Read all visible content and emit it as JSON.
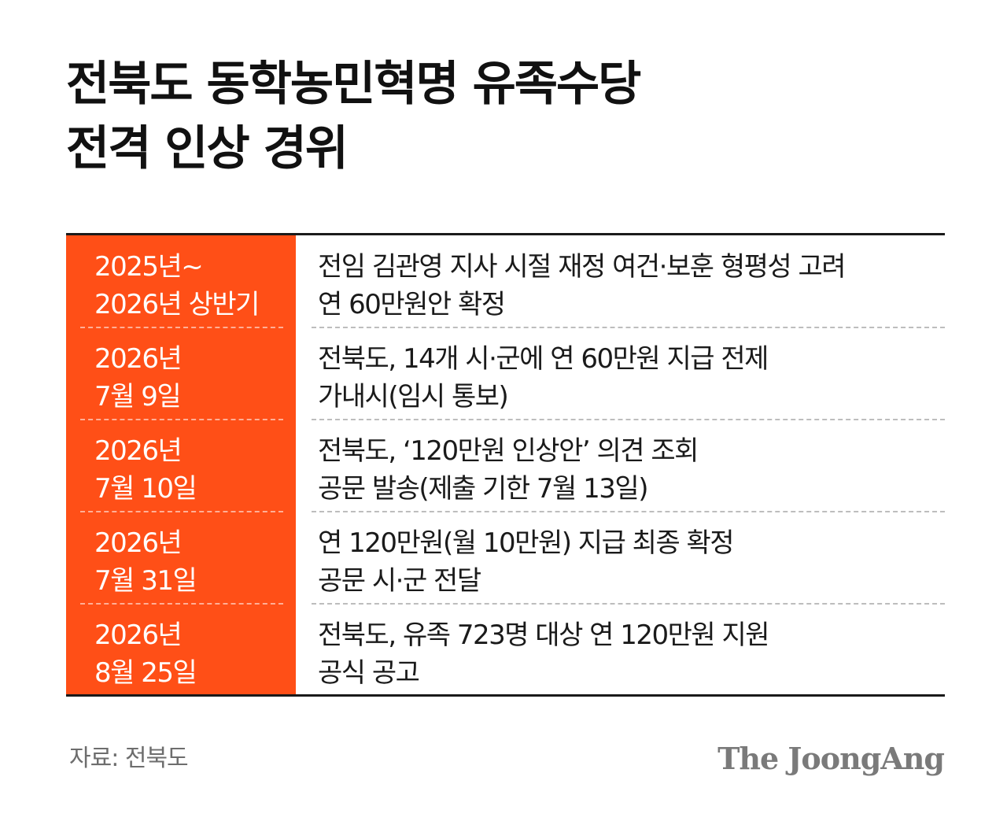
{
  "title": {
    "line1": "전북도 동학농민혁명 유족수당",
    "line2": "전격 인상 경위"
  },
  "rows": [
    {
      "date_line1": "2025년~",
      "date_line2": "2026년 상반기",
      "desc_line1": "전임 김관영 지사 시절 재정 여건·보훈 형평성 고려",
      "desc_line2": "연 60만원안 확정"
    },
    {
      "date_line1": "2026년",
      "date_line2": "7월 9일",
      "desc_line1": "전북도, 14개 시·군에 연 60만원 지급 전제",
      "desc_line2": "가내시(임시 통보)"
    },
    {
      "date_line1": "2026년",
      "date_line2": "7월 10일",
      "desc_line1": "전북도, ‘120만원 인상안’ 의견 조회",
      "desc_line2": "공문 발송(제출 기한 7월 13일)"
    },
    {
      "date_line1": "2026년",
      "date_line2": "7월 31일",
      "desc_line1": "연 120만원(월 10만원) 지급 최종 확정",
      "desc_line2": "공문 시·군 전달"
    },
    {
      "date_line1": "2026년",
      "date_line2": "8월 25일",
      "desc_line1": "전북도, 유족 723명 대상 연 120만원 지원",
      "desc_line2": "공식 공고"
    }
  ],
  "source": "자료: 전북도",
  "brand": "The JoongAng",
  "colors": {
    "accent": "#ff4f17",
    "text": "#1a1a1a",
    "muted": "#6d6d6d"
  }
}
